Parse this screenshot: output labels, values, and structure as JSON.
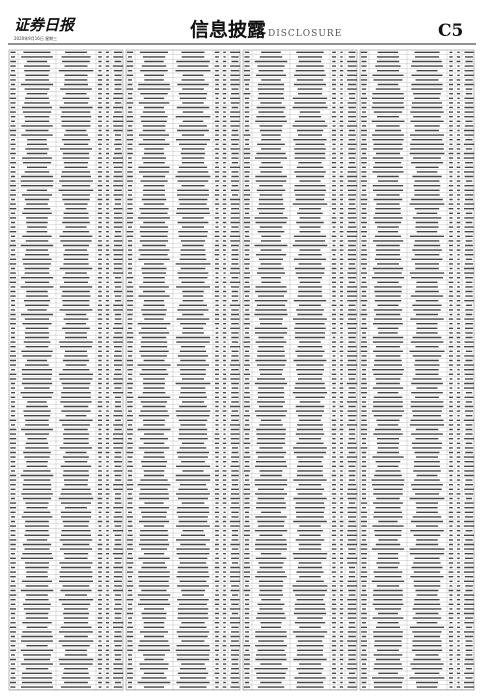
{
  "header": {
    "logo": "证券日报",
    "date": "2020年9月16日 星期三",
    "section": "信息披露",
    "section_en": "DISCLOSURE",
    "page": "C5"
  }
}
